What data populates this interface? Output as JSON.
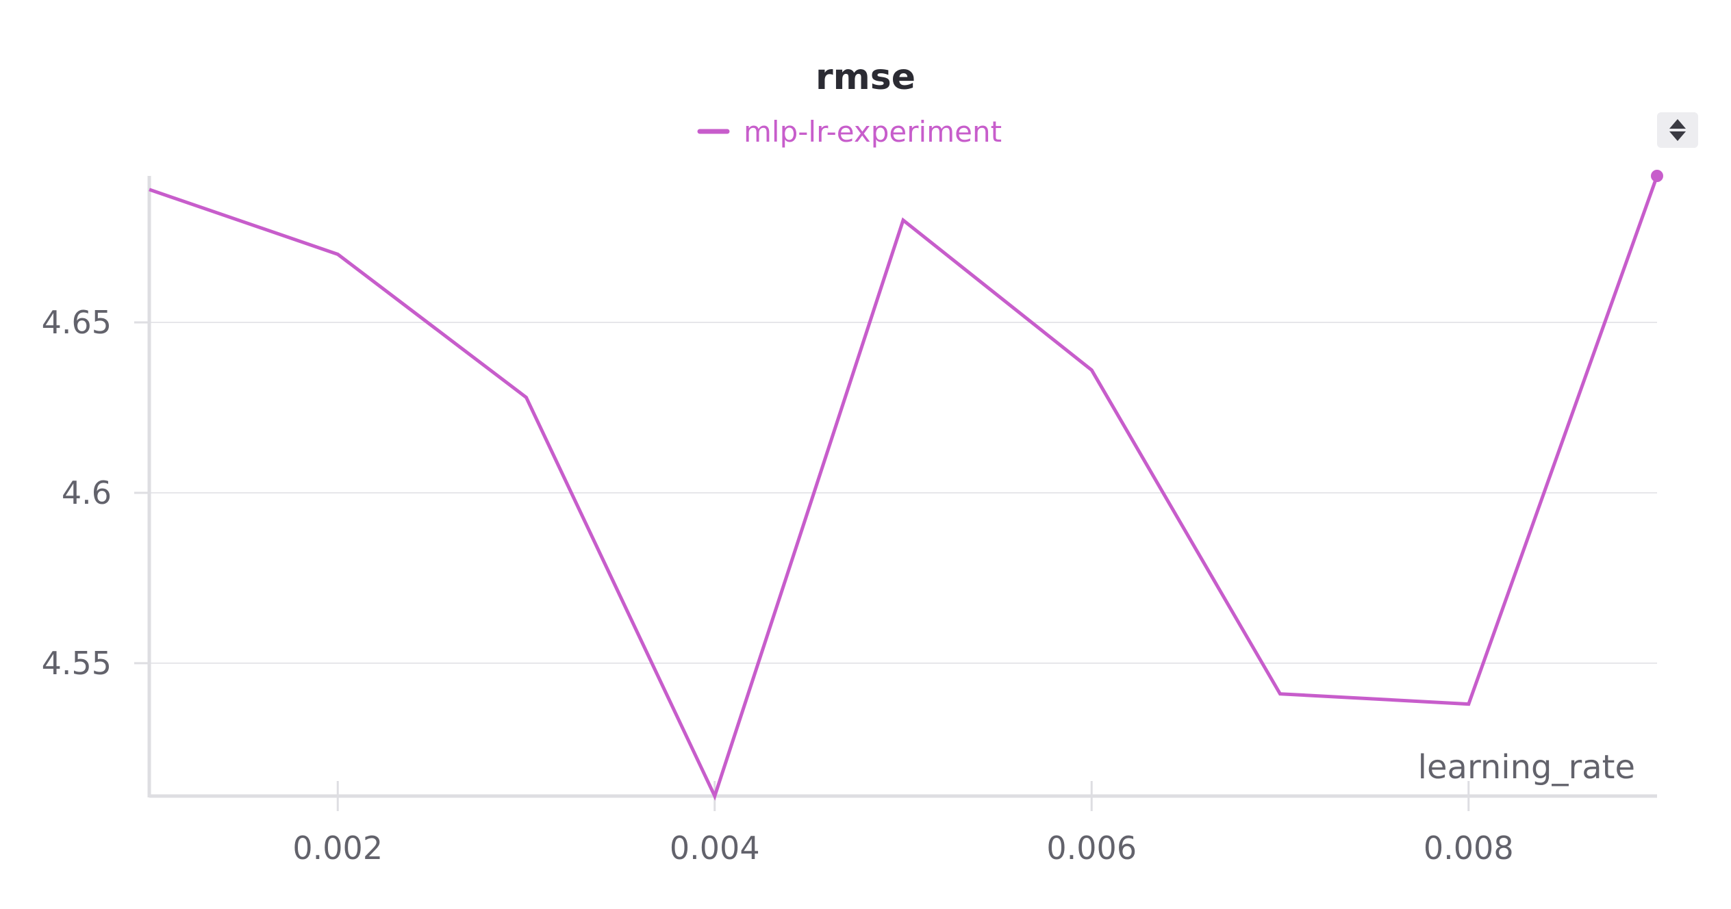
{
  "chart_data": {
    "type": "line",
    "title": "rmse",
    "xlabel": "learning_rate",
    "ylabel": "",
    "x": [
      0.001,
      0.002,
      0.003,
      0.004,
      0.005,
      0.006,
      0.007,
      0.008,
      0.009
    ],
    "series": [
      {
        "name": "mlp-lr-experiment",
        "color": "#c75dcb",
        "values": [
          4.689,
          4.67,
          4.628,
          4.511,
          4.68,
          4.636,
          4.541,
          4.538,
          4.693
        ]
      }
    ],
    "xlim": [
      0.001,
      0.009
    ],
    "ylim": [
      4.511,
      4.693
    ],
    "xticks": [
      0.002,
      0.004,
      0.006,
      0.008
    ],
    "xtick_labels": [
      "0.002",
      "0.004",
      "0.006",
      "0.008"
    ],
    "yticks": [
      4.55,
      4.6,
      4.65
    ],
    "ytick_labels": [
      "4.55",
      "4.6",
      "4.65"
    ],
    "grid": true,
    "legend_position": "top-center",
    "end_marker": true
  },
  "colors": {
    "series": "#c75dcb",
    "grid": "#e6e6ea",
    "axis": "#dedee2",
    "text": "#62626b",
    "title": "#2b2b33"
  },
  "controls": {
    "sort_toggle_icon": "sort-up-down-icon"
  }
}
